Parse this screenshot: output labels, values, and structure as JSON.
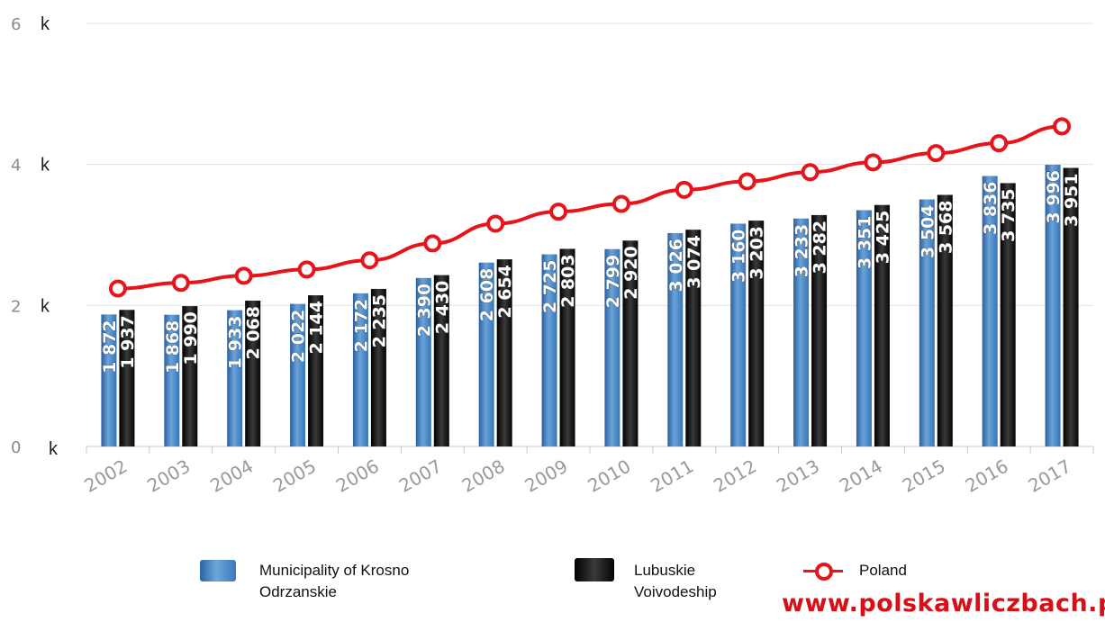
{
  "chart_data": {
    "type": "bar",
    "categories": [
      "2002",
      "2003",
      "2004",
      "2005",
      "2006",
      "2007",
      "2008",
      "2009",
      "2010",
      "2011",
      "2012",
      "2013",
      "2014",
      "2015",
      "2016",
      "2017"
    ],
    "series": [
      {
        "name": "Municipality of Krosno Odrzanskie",
        "kind": "bar",
        "color": "#3d7fc4",
        "values": [
          1872,
          1868,
          1933,
          2022,
          2172,
          2390,
          2608,
          2725,
          2799,
          3026,
          3160,
          3233,
          3351,
          3504,
          3836,
          3996
        ],
        "labels": [
          "1 872",
          "1 868",
          "1 933",
          "2 022",
          "2 172",
          "2 390",
          "2 608",
          "2 725",
          "2 799",
          "3 026",
          "3 160",
          "3 233",
          "3 351",
          "3 504",
          "3 836",
          "3 996"
        ]
      },
      {
        "name": "Lubuskie Voivodeship",
        "kind": "bar",
        "color": "#111111",
        "values": [
          1937,
          1990,
          2068,
          2144,
          2235,
          2430,
          2654,
          2803,
          2920,
          3074,
          3203,
          3282,
          3425,
          3568,
          3735,
          3951
        ],
        "labels": [
          "1 937",
          "1 990",
          "2 068",
          "2 144",
          "2 235",
          "2 430",
          "2 654",
          "2 803",
          "2 920",
          "3 074",
          "3 203",
          "3 282",
          "3 425",
          "3 568",
          "3 735",
          "3 951"
        ]
      },
      {
        "name": "Poland",
        "kind": "line",
        "color": "#e8141c",
        "values": [
          2240,
          2320,
          2420,
          2510,
          2640,
          2880,
          3160,
          3330,
          3440,
          3640,
          3760,
          3890,
          4030,
          4160,
          4300,
          4540
        ]
      }
    ],
    "yticks": [
      {
        "value": 0,
        "label": "0"
      },
      {
        "value": 2000,
        "label": "2"
      },
      {
        "value": 4000,
        "label": "4"
      },
      {
        "value": 6000,
        "label": "6"
      }
    ],
    "yunit": "k",
    "ylim": [
      0,
      6000
    ],
    "grid": true,
    "legend_position": "bottom"
  },
  "legend": {
    "item1": {
      "line1": "Municipality of Krosno",
      "line2": "Odrzanskie"
    },
    "item2": {
      "line1": "Lubuskie",
      "line2": "Voivodeship"
    },
    "item3": {
      "line1": "Poland"
    }
  },
  "watermark": "www.polskawliczbach.pl"
}
